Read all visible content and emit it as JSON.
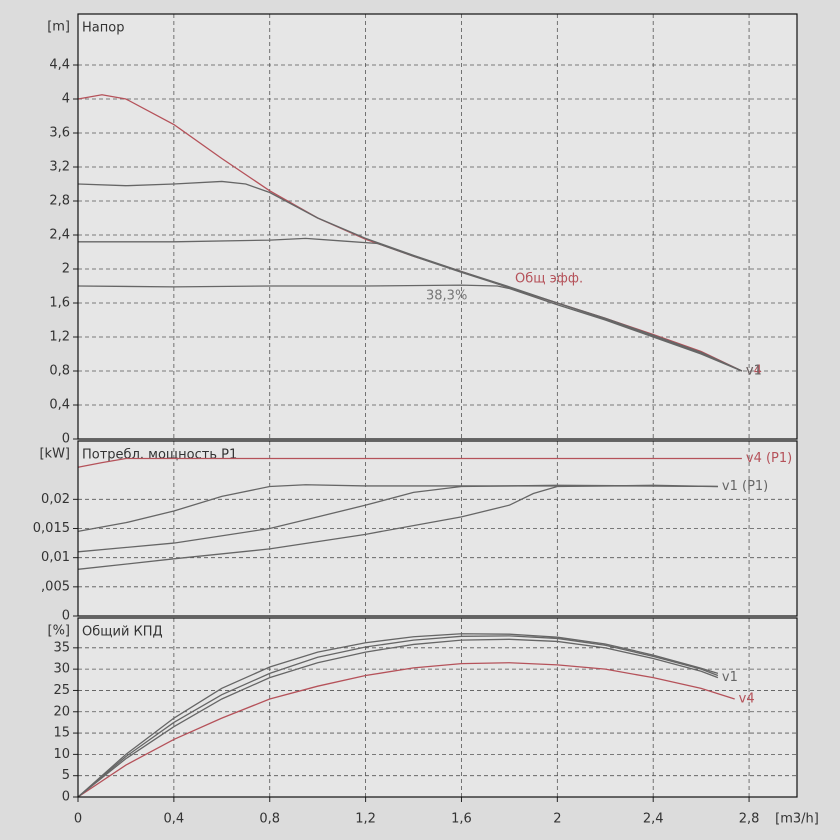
{
  "chart_data": [
    {
      "type": "line",
      "title": "Напор",
      "ylabel": "[m]",
      "xlim": [
        0,
        3
      ],
      "ylim": [
        0,
        5
      ],
      "yticks": [
        0,
        {
          "value": 0.4,
          "label": "0,4"
        },
        {
          "value": 0.8,
          "label": "0,8"
        },
        {
          "value": 1.2,
          "label": "1,2"
        },
        {
          "value": 1.6,
          "label": "1,6"
        },
        2,
        {
          "value": 2.4,
          "label": "2,4"
        },
        {
          "value": 2.8,
          "label": "2,8"
        },
        {
          "value": 3.2,
          "label": "3,2"
        },
        {
          "value": 3.6,
          "label": "3,6"
        },
        4,
        {
          "value": 4.4,
          "label": "4,4"
        }
      ],
      "grid": true,
      "annotations": [
        "Общ эфф.",
        "38,3%"
      ],
      "series": [
        {
          "name": "v4",
          "color": "#b5525a",
          "x": [
            0,
            0.1,
            0.2,
            0.4,
            0.6,
            0.8,
            1.0,
            1.2,
            1.4,
            1.6,
            1.8,
            2.0,
            2.2,
            2.4,
            2.6,
            2.77
          ],
          "values": [
            4.0,
            4.05,
            4.0,
            3.7,
            3.3,
            2.92,
            2.6,
            2.35,
            2.15,
            1.97,
            1.78,
            1.6,
            1.42,
            1.23,
            1.03,
            0.8
          ]
        },
        {
          "color": "#666666",
          "x": [
            0,
            0.2,
            0.4,
            0.6,
            0.7,
            0.8,
            1.0,
            1.2,
            1.4,
            1.6,
            1.8,
            2.0,
            2.2,
            2.4,
            2.6,
            2.77
          ],
          "values": [
            3.0,
            2.98,
            3.0,
            3.03,
            3.0,
            2.9,
            2.6,
            2.36,
            2.16,
            1.97,
            1.79,
            1.6,
            1.42,
            1.22,
            1.02,
            0.8
          ]
        },
        {
          "color": "#666666",
          "x": [
            0,
            0.4,
            0.8,
            0.95,
            1.1,
            1.25,
            1.4,
            1.6,
            1.8,
            2.0,
            2.2,
            2.4,
            2.6,
            2.77
          ],
          "values": [
            2.32,
            2.32,
            2.34,
            2.36,
            2.33,
            2.3,
            2.15,
            1.96,
            1.78,
            1.6,
            1.41,
            1.21,
            1.01,
            0.8
          ]
        },
        {
          "name": "v1",
          "color": "#666666",
          "x": [
            0,
            0.4,
            0.8,
            1.2,
            1.6,
            1.75,
            1.8,
            2.0,
            2.2,
            2.4,
            2.6,
            2.77
          ],
          "values": [
            1.8,
            1.79,
            1.8,
            1.8,
            1.81,
            1.8,
            1.77,
            1.58,
            1.4,
            1.2,
            1.0,
            0.8
          ]
        }
      ]
    },
    {
      "type": "line",
      "title": "Потребл. мощность P1",
      "ylabel": "[kW]",
      "xlim": [
        0,
        3
      ],
      "ylim": [
        0,
        0.03
      ],
      "yticks": [
        0,
        {
          "value": 0.005,
          "label": ",005"
        },
        {
          "value": 0.01,
          "label": "0,01"
        },
        {
          "value": 0.015,
          "label": "0,015"
        },
        {
          "value": 0.02,
          "label": "0,02"
        }
      ],
      "grid": true,
      "series": [
        {
          "name": "v4 (P1)",
          "color": "#b5525a",
          "x": [
            0,
            0.1,
            0.2,
            0.4,
            1.0,
            2.0,
            2.77
          ],
          "values": [
            0.0255,
            0.0263,
            0.027,
            0.027,
            0.027,
            0.027,
            0.027
          ]
        },
        {
          "color": "#666666",
          "x": [
            0,
            0.2,
            0.4,
            0.6,
            0.8,
            0.95,
            1.2,
            1.6,
            2.0,
            2.4,
            2.67
          ],
          "values": [
            0.0145,
            0.016,
            0.018,
            0.0205,
            0.0222,
            0.0225,
            0.0223,
            0.0223,
            0.0223,
            0.0223,
            0.0222
          ]
        },
        {
          "color": "#666666",
          "x": [
            0,
            0.4,
            0.8,
            1.0,
            1.2,
            1.4,
            1.6,
            2.0,
            2.4,
            2.67
          ],
          "values": [
            0.011,
            0.0125,
            0.015,
            0.017,
            0.019,
            0.0212,
            0.0222,
            0.0224,
            0.0223,
            0.0222
          ]
        },
        {
          "name": "v1 (P1)",
          "color": "#666666",
          "x": [
            0,
            0.4,
            0.8,
            1.2,
            1.6,
            1.8,
            1.9,
            2.0,
            2.4,
            2.67
          ],
          "values": [
            0.008,
            0.0098,
            0.0115,
            0.014,
            0.017,
            0.019,
            0.021,
            0.0222,
            0.0224,
            0.0222
          ]
        }
      ]
    },
    {
      "type": "line",
      "title": "Общий КПД",
      "ylabel": "[%]",
      "xlabel": "[m3/h]",
      "xlim": [
        0,
        3
      ],
      "ylim": [
        0,
        42
      ],
      "xticks": [
        0,
        {
          "value": 0.4,
          "label": "0,4"
        },
        {
          "value": 0.8,
          "label": "0,8"
        },
        {
          "value": 1.2,
          "label": "1,2"
        },
        {
          "value": 1.6,
          "label": "1,6"
        },
        2,
        {
          "value": 2.4,
          "label": "2,4"
        },
        {
          "value": 2.8,
          "label": "2,8"
        }
      ],
      "yticks": [
        0,
        5,
        10,
        15,
        20,
        25,
        30,
        35
      ],
      "grid": true,
      "series": [
        {
          "name": "v4",
          "color": "#b5525a",
          "x": [
            0,
            0.2,
            0.4,
            0.6,
            0.8,
            1.0,
            1.2,
            1.4,
            1.6,
            1.8,
            2.0,
            2.2,
            2.4,
            2.6,
            2.74
          ],
          "values": [
            0,
            7.5,
            13.5,
            18.5,
            23,
            26,
            28.5,
            30.3,
            31.3,
            31.5,
            31,
            30,
            28,
            25.5,
            23
          ]
        },
        {
          "name": "v1",
          "color": "#666666",
          "x": [
            0,
            0.2,
            0.4,
            0.6,
            0.8,
            1.0,
            1.2,
            1.4,
            1.6,
            1.8,
            2.0,
            2.2,
            2.4,
            2.6,
            2.67
          ],
          "values": [
            0,
            9,
            16.5,
            23,
            28,
            31.5,
            34,
            35.8,
            36.8,
            37,
            36.5,
            35,
            32.5,
            29.5,
            28
          ]
        },
        {
          "color": "#666666",
          "x": [
            0,
            0.2,
            0.4,
            0.6,
            0.8,
            1.0,
            1.2,
            1.4,
            1.6,
            1.8,
            2.0,
            2.2,
            2.4,
            2.6,
            2.67
          ],
          "values": [
            0,
            9.5,
            17.5,
            24,
            29,
            32.8,
            35.2,
            36.8,
            37.7,
            37.8,
            37.2,
            35.6,
            33,
            30,
            28.5
          ]
        },
        {
          "color": "#666666",
          "x": [
            0,
            0.2,
            0.4,
            0.6,
            0.8,
            1.0,
            1.2,
            1.4,
            1.6,
            1.8,
            2.0,
            2.2,
            2.4,
            2.6,
            2.67
          ],
          "values": [
            0,
            10,
            18.5,
            25.5,
            30.5,
            34,
            36.2,
            37.6,
            38.3,
            38.2,
            37.5,
            35.9,
            33.3,
            30.2,
            29
          ]
        }
      ]
    }
  ]
}
